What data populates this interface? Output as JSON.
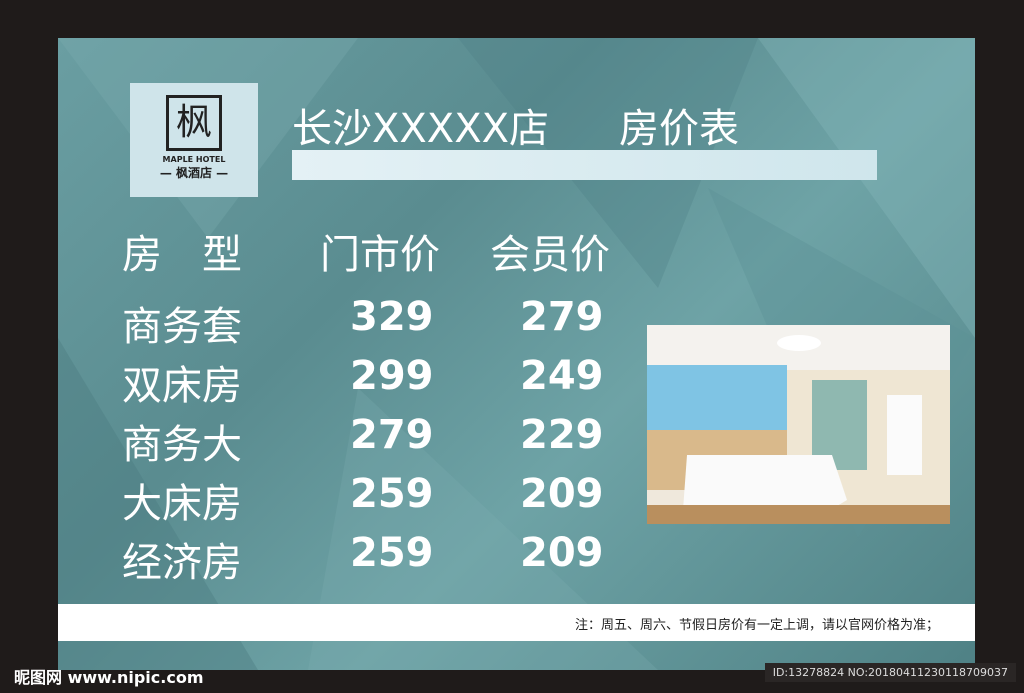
{
  "logo": {
    "mark": "枫",
    "en": "MAPLE HOTEL",
    "cn": "— 枫酒店 —"
  },
  "title": {
    "store": "长沙XXXXX店",
    "subtitle": "房价表"
  },
  "headers": {
    "type": "房　型",
    "retail": "门市价",
    "member": "会员价"
  },
  "rooms": [
    {
      "name": "商务套",
      "retail": "329",
      "member": "279"
    },
    {
      "name": "双床房",
      "retail": "299",
      "member": "249"
    },
    {
      "name": "商务大",
      "retail": "279",
      "member": "229"
    },
    {
      "name": "大床房",
      "retail": "259",
      "member": "209"
    },
    {
      "name": "经济房",
      "retail": "259",
      "member": "209"
    }
  ],
  "note": "注：周五、周六、节假日房价有一定上调，请以官网价格为准；",
  "watermark": "昵图网 www.nipic.com",
  "image_id": "ID:13278824 NO:20180411230118709037"
}
